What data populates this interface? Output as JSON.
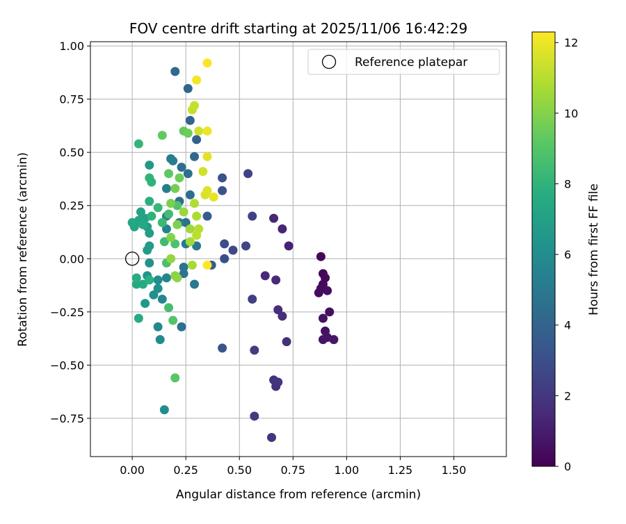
{
  "chart_data": {
    "type": "scatter",
    "title": "FOV centre drift starting at 2025/11/06 16:42:29",
    "xlabel": "Angular distance from reference (arcmin)",
    "ylabel": "Rotation from reference (arcmin)",
    "xlim": [
      -0.195,
      1.745
    ],
    "ylim": [
      -0.93,
      1.02
    ],
    "xticks": [
      0.0,
      0.25,
      0.5,
      0.75,
      1.0,
      1.25,
      1.5
    ],
    "xtick_labels": [
      "0.00",
      "0.25",
      "0.50",
      "0.75",
      "1.00",
      "1.25",
      "1.50"
    ],
    "yticks": [
      -0.75,
      -0.5,
      -0.25,
      0.0,
      0.25,
      0.5,
      0.75,
      1.0
    ],
    "ytick_labels": [
      "−0.75",
      "−0.50",
      "−0.25",
      "0.00",
      "0.25",
      "0.50",
      "0.75",
      "1.00"
    ],
    "grid": true,
    "legend": {
      "placement": "top-right",
      "entries": [
        "Reference platepar"
      ]
    },
    "reference_point": {
      "x": 0.0,
      "y": 0.0
    },
    "colorbar": {
      "label": "Hours from first FF file",
      "colormap": "viridis",
      "range": [
        0,
        12.3
      ],
      "ticks": [
        0,
        2,
        4,
        6,
        8,
        10,
        12
      ],
      "tick_labels": [
        "0",
        "2",
        "4",
        "6",
        "8",
        "10",
        "12"
      ]
    },
    "points": [
      {
        "x": 0.88,
        "y": 0.01,
        "h": 0.2
      },
      {
        "x": 0.89,
        "y": -0.07,
        "h": 0.2
      },
      {
        "x": 0.9,
        "y": -0.09,
        "h": 0.3
      },
      {
        "x": 0.89,
        "y": -0.12,
        "h": 0.3
      },
      {
        "x": 0.88,
        "y": -0.14,
        "h": 0.4
      },
      {
        "x": 0.87,
        "y": -0.16,
        "h": 0.4
      },
      {
        "x": 0.91,
        "y": -0.15,
        "h": 0.5
      },
      {
        "x": 0.92,
        "y": -0.25,
        "h": 0.5
      },
      {
        "x": 0.89,
        "y": -0.28,
        "h": 0.6
      },
      {
        "x": 0.9,
        "y": -0.34,
        "h": 0.6
      },
      {
        "x": 0.91,
        "y": -0.37,
        "h": 0.7
      },
      {
        "x": 0.89,
        "y": -0.38,
        "h": 0.7
      },
      {
        "x": 0.94,
        "y": -0.38,
        "h": 0.8
      },
      {
        "x": 0.73,
        "y": 0.06,
        "h": 1.2
      },
      {
        "x": 0.7,
        "y": 0.14,
        "h": 1.3
      },
      {
        "x": 0.66,
        "y": 0.19,
        "h": 1.4
      },
      {
        "x": 0.62,
        "y": -0.08,
        "h": 1.5
      },
      {
        "x": 0.67,
        "y": -0.1,
        "h": 1.5
      },
      {
        "x": 0.68,
        "y": -0.24,
        "h": 1.6
      },
      {
        "x": 0.7,
        "y": -0.27,
        "h": 1.6
      },
      {
        "x": 0.72,
        "y": -0.39,
        "h": 1.7
      },
      {
        "x": 0.66,
        "y": -0.57,
        "h": 1.8
      },
      {
        "x": 0.67,
        "y": -0.6,
        "h": 1.8
      },
      {
        "x": 0.68,
        "y": -0.58,
        "h": 1.9
      },
      {
        "x": 0.65,
        "y": -0.84,
        "h": 1.9
      },
      {
        "x": 0.57,
        "y": -0.74,
        "h": 2.1
      },
      {
        "x": 0.57,
        "y": -0.43,
        "h": 2.2
      },
      {
        "x": 0.56,
        "y": -0.19,
        "h": 2.3
      },
      {
        "x": 0.56,
        "y": 0.2,
        "h": 2.4
      },
      {
        "x": 0.54,
        "y": 0.4,
        "h": 2.5
      },
      {
        "x": 0.53,
        "y": 0.06,
        "h": 2.6
      },
      {
        "x": 0.47,
        "y": 0.04,
        "h": 2.8
      },
      {
        "x": 0.43,
        "y": 0.07,
        "h": 2.9
      },
      {
        "x": 0.43,
        "y": 0.0,
        "h": 3.0
      },
      {
        "x": 0.42,
        "y": 0.38,
        "h": 3.1
      },
      {
        "x": 0.42,
        "y": 0.32,
        "h": 3.2
      },
      {
        "x": 0.42,
        "y": -0.42,
        "h": 3.3
      },
      {
        "x": 0.37,
        "y": -0.03,
        "h": 3.5
      },
      {
        "x": 0.35,
        "y": 0.2,
        "h": 3.6
      },
      {
        "x": 0.3,
        "y": 0.56,
        "h": 3.8
      },
      {
        "x": 0.27,
        "y": 0.65,
        "h": 4.0
      },
      {
        "x": 0.26,
        "y": 0.8,
        "h": 4.1
      },
      {
        "x": 0.2,
        "y": 0.88,
        "h": 4.3
      },
      {
        "x": 0.29,
        "y": 0.48,
        "h": 4.2
      },
      {
        "x": 0.23,
        "y": 0.43,
        "h": 4.4
      },
      {
        "x": 0.27,
        "y": 0.3,
        "h": 4.4
      },
      {
        "x": 0.26,
        "y": 0.4,
        "h": 4.5
      },
      {
        "x": 0.22,
        "y": 0.27,
        "h": 4.5
      },
      {
        "x": 0.25,
        "y": 0.17,
        "h": 4.6
      },
      {
        "x": 0.23,
        "y": -0.32,
        "h": 4.6
      },
      {
        "x": 0.24,
        "y": -0.04,
        "h": 4.7
      },
      {
        "x": 0.24,
        "y": -0.07,
        "h": 4.8
      },
      {
        "x": 0.29,
        "y": -0.12,
        "h": 4.9
      },
      {
        "x": 0.3,
        "y": 0.06,
        "h": 5.0
      },
      {
        "x": 0.25,
        "y": 0.07,
        "h": 5.0
      },
      {
        "x": 0.22,
        "y": 0.17,
        "h": 5.1
      },
      {
        "x": 0.18,
        "y": 0.47,
        "h": 5.2
      },
      {
        "x": 0.19,
        "y": 0.46,
        "h": 5.2
      },
      {
        "x": 0.16,
        "y": 0.33,
        "h": 5.3
      },
      {
        "x": 0.16,
        "y": 0.2,
        "h": 5.4
      },
      {
        "x": 0.16,
        "y": 0.14,
        "h": 5.5
      },
      {
        "x": 0.16,
        "y": -0.09,
        "h": 5.6
      },
      {
        "x": 0.14,
        "y": -0.19,
        "h": 5.7
      },
      {
        "x": 0.12,
        "y": -0.32,
        "h": 5.8
      },
      {
        "x": 0.13,
        "y": -0.38,
        "h": 5.9
      },
      {
        "x": 0.15,
        "y": -0.71,
        "h": 6.0
      },
      {
        "x": 0.12,
        "y": -0.1,
        "h": 6.1
      },
      {
        "x": 0.1,
        "y": -0.17,
        "h": 6.2
      },
      {
        "x": 0.12,
        "y": -0.14,
        "h": 6.2
      },
      {
        "x": 0.08,
        "y": -0.02,
        "h": 6.3
      },
      {
        "x": 0.07,
        "y": -0.08,
        "h": 6.4
      },
      {
        "x": 0.06,
        "y": -0.21,
        "h": 6.5
      },
      {
        "x": 0.08,
        "y": 0.44,
        "h": 6.6
      },
      {
        "x": 0.08,
        "y": 0.06,
        "h": 6.7
      },
      {
        "x": 0.07,
        "y": 0.04,
        "h": 6.8
      },
      {
        "x": 0.08,
        "y": 0.12,
        "h": 6.8
      },
      {
        "x": 0.07,
        "y": 0.15,
        "h": 6.9
      },
      {
        "x": 0.06,
        "y": 0.19,
        "h": 7.0
      },
      {
        "x": 0.04,
        "y": 0.22,
        "h": 7.1
      },
      {
        "x": 0.03,
        "y": 0.18,
        "h": 7.2
      },
      {
        "x": 0.01,
        "y": 0.15,
        "h": 7.2
      },
      {
        "x": 0.0,
        "y": 0.17,
        "h": 7.3
      },
      {
        "x": 0.05,
        "y": 0.16,
        "h": 7.4
      },
      {
        "x": 0.02,
        "y": -0.12,
        "h": 7.5
      },
      {
        "x": 0.05,
        "y": -0.12,
        "h": 7.5
      },
      {
        "x": 0.03,
        "y": -0.28,
        "h": 7.6
      },
      {
        "x": 0.02,
        "y": -0.09,
        "h": 7.7
      },
      {
        "x": 0.08,
        "y": -0.1,
        "h": 7.8
      },
      {
        "x": 0.08,
        "y": 0.27,
        "h": 7.8
      },
      {
        "x": 0.09,
        "y": 0.2,
        "h": 7.9
      },
      {
        "x": 0.08,
        "y": 0.38,
        "h": 8.0
      },
      {
        "x": 0.09,
        "y": 0.36,
        "h": 8.0
      },
      {
        "x": 0.03,
        "y": 0.54,
        "h": 8.1
      },
      {
        "x": 0.12,
        "y": 0.24,
        "h": 8.2
      },
      {
        "x": 0.14,
        "y": 0.17,
        "h": 8.3
      },
      {
        "x": 0.15,
        "y": 0.08,
        "h": 8.4
      },
      {
        "x": 0.17,
        "y": 0.21,
        "h": 8.5
      },
      {
        "x": 0.17,
        "y": -0.23,
        "h": 8.6
      },
      {
        "x": 0.16,
        "y": -0.02,
        "h": 8.7
      },
      {
        "x": 0.2,
        "y": 0.07,
        "h": 8.8
      },
      {
        "x": 0.21,
        "y": 0.25,
        "h": 8.9
      },
      {
        "x": 0.19,
        "y": -0.29,
        "h": 9.0
      },
      {
        "x": 0.2,
        "y": -0.56,
        "h": 9.1
      },
      {
        "x": 0.17,
        "y": 0.4,
        "h": 9.2
      },
      {
        "x": 0.14,
        "y": 0.58,
        "h": 9.3
      },
      {
        "x": 0.24,
        "y": 0.6,
        "h": 9.4
      },
      {
        "x": 0.26,
        "y": 0.59,
        "h": 9.5
      },
      {
        "x": 0.22,
        "y": 0.38,
        "h": 9.6
      },
      {
        "x": 0.2,
        "y": 0.33,
        "h": 9.7
      },
      {
        "x": 0.18,
        "y": 0.26,
        "h": 9.8
      },
      {
        "x": 0.21,
        "y": 0.16,
        "h": 9.9
      },
      {
        "x": 0.18,
        "y": 0.1,
        "h": 10.0
      },
      {
        "x": 0.2,
        "y": -0.08,
        "h": 10.1
      },
      {
        "x": 0.21,
        "y": -0.09,
        "h": 10.2
      },
      {
        "x": 0.18,
        "y": 0.0,
        "h": 10.3
      },
      {
        "x": 0.24,
        "y": 0.22,
        "h": 10.4
      },
      {
        "x": 0.27,
        "y": 0.14,
        "h": 10.5
      },
      {
        "x": 0.27,
        "y": 0.08,
        "h": 10.6
      },
      {
        "x": 0.28,
        "y": -0.03,
        "h": 10.7
      },
      {
        "x": 0.3,
        "y": 0.2,
        "h": 10.8
      },
      {
        "x": 0.29,
        "y": 0.26,
        "h": 10.9
      },
      {
        "x": 0.31,
        "y": 0.14,
        "h": 11.0
      },
      {
        "x": 0.3,
        "y": 0.11,
        "h": 11.1
      },
      {
        "x": 0.28,
        "y": 0.7,
        "h": 11.2
      },
      {
        "x": 0.29,
        "y": 0.72,
        "h": 11.3
      },
      {
        "x": 0.31,
        "y": 0.6,
        "h": 11.4
      },
      {
        "x": 0.33,
        "y": 0.41,
        "h": 11.5
      },
      {
        "x": 0.34,
        "y": 0.3,
        "h": 11.6
      },
      {
        "x": 0.35,
        "y": 0.32,
        "h": 11.7
      },
      {
        "x": 0.35,
        "y": 0.48,
        "h": 11.8
      },
      {
        "x": 0.38,
        "y": 0.29,
        "h": 11.9
      },
      {
        "x": 0.35,
        "y": 0.6,
        "h": 12.0
      },
      {
        "x": 0.3,
        "y": 0.84,
        "h": 12.1
      },
      {
        "x": 0.35,
        "y": 0.92,
        "h": 12.2
      },
      {
        "x": 0.35,
        "y": -0.03,
        "h": 12.3
      }
    ]
  }
}
